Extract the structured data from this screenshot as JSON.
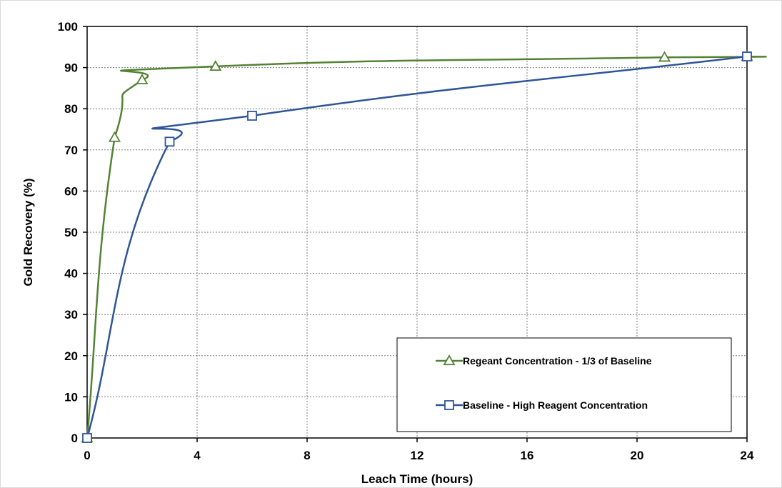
{
  "chart_data": {
    "type": "line",
    "title": "",
    "xlabel": "Leach Time (hours)",
    "ylabel": "Gold Recovery (%)",
    "xlim": [
      0,
      24
    ],
    "ylim": [
      0,
      100
    ],
    "xticks": [
      0,
      4,
      8,
      12,
      16,
      20,
      24
    ],
    "yticks": [
      0,
      10,
      20,
      30,
      40,
      50,
      60,
      70,
      80,
      90,
      100
    ],
    "grid": true,
    "legend_position": "bottom-right",
    "series": [
      {
        "name": "Regeant Concentration - 1/3 of Baseline",
        "color": "#548235",
        "marker": "triangle",
        "x": [
          0,
          1,
          2,
          4.67,
          21,
          24
        ],
        "y": [
          0,
          73,
          87,
          90.3,
          92.5,
          92.7
        ]
      },
      {
        "name": "Baseline - High Reagent Concentration",
        "color": "#2F5597",
        "marker": "square",
        "x": [
          0,
          3,
          6,
          24
        ],
        "y": [
          0,
          72,
          78.3,
          92.7
        ]
      }
    ]
  }
}
